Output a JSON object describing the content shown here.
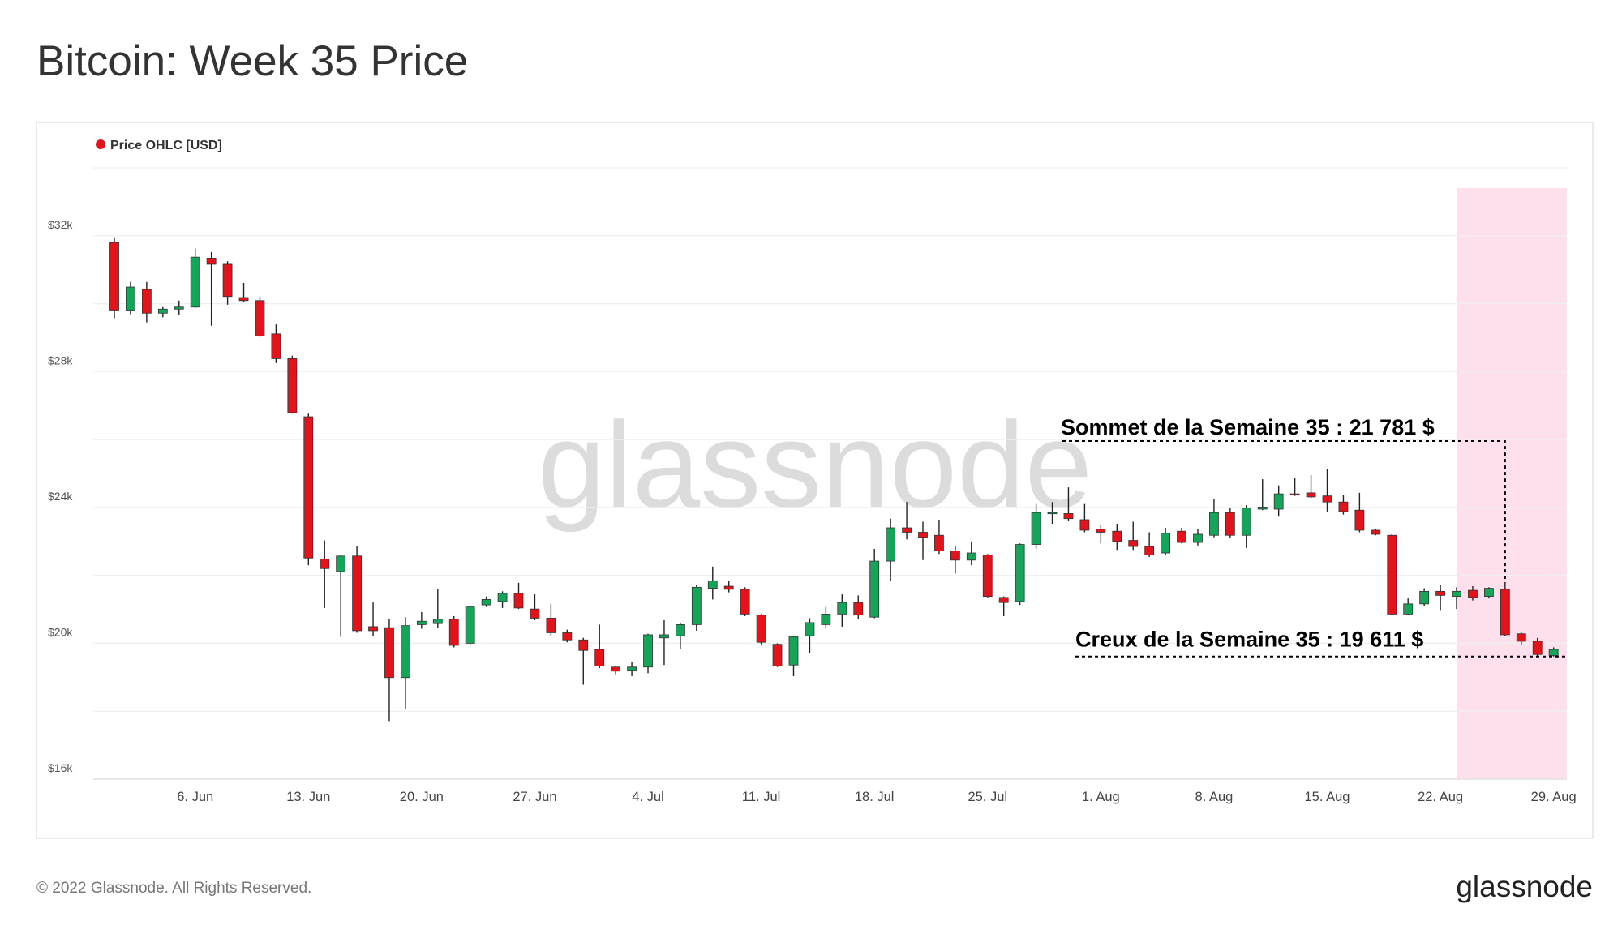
{
  "chart_data": {
    "type": "candlestick",
    "title": "Bitcoin: Week 35 Price",
    "legend": "Price OHLC [USD]",
    "watermark": "glassnode",
    "footer": "© 2022 Glassnode. All Rights Reserved.",
    "logo": "glassnode",
    "up_color": "#16a35a",
    "down_color": "#e3131b",
    "highlight_color": "#fde0ec",
    "highlight": {
      "from": 83,
      "to": 89
    },
    "categories": [
      null,
      null,
      null,
      null,
      null,
      "6. Jun",
      null,
      null,
      null,
      null,
      null,
      null,
      "13. Jun",
      null,
      null,
      null,
      null,
      null,
      null,
      "20. Jun",
      null,
      null,
      null,
      null,
      null,
      null,
      "27. Jun",
      null,
      null,
      null,
      null,
      null,
      null,
      "4. Jul",
      null,
      null,
      null,
      null,
      null,
      null,
      "11. Jul",
      null,
      null,
      null,
      null,
      null,
      null,
      "18. Jul",
      null,
      null,
      null,
      null,
      null,
      null,
      "25. Jul",
      null,
      null,
      null,
      null,
      null,
      null,
      "1. Aug",
      null,
      null,
      null,
      null,
      null,
      null,
      "8. Aug",
      null,
      null,
      null,
      null,
      null,
      null,
      "15. Aug",
      null,
      null,
      null,
      null,
      null,
      null,
      "22. Aug",
      null,
      null,
      null,
      null,
      null,
      null,
      "29. Aug"
    ],
    "open": [
      31800,
      29810,
      30420,
      29720,
      29840,
      29900,
      31340,
      31160,
      30180,
      30090,
      29110,
      28380,
      26670,
      22480,
      22110,
      22570,
      20490,
      20460,
      18990,
      20550,
      20580,
      20710,
      20000,
      21130,
      21230,
      21470,
      21010,
      20740,
      20310,
      20100,
      19820,
      19300,
      19210,
      19300,
      20160,
      20220,
      20550,
      21620,
      21680,
      21590,
      20830,
      19970,
      19360,
      20220,
      20550,
      20860,
      21200,
      20770,
      22420,
      23400,
      23270,
      23180,
      22720,
      22450,
      22600,
      21350,
      21230,
      22910,
      23820,
      23820,
      23640,
      23360,
      23300,
      23030,
      22850,
      22660,
      23300,
      22970,
      23180,
      23850,
      23180,
      23950,
      23950,
      24400,
      24430,
      24340,
      24160,
      23920,
      23330,
      23180,
      20860,
      21160,
      21530,
      21380,
      21560,
      21380,
      21590,
      20280,
      20060,
      19640
    ],
    "high": [
      31950,
      30640,
      30640,
      29900,
      30090,
      31620,
      31520,
      31250,
      30610,
      30210,
      29390,
      28470,
      26760,
      23030,
      22600,
      22850,
      21200,
      20710,
      20770,
      20920,
      21590,
      20800,
      21100,
      21380,
      21530,
      21780,
      21440,
      21160,
      20400,
      20160,
      20550,
      19330,
      19450,
      20280,
      20680,
      20610,
      21710,
      22260,
      21840,
      21650,
      20860,
      20000,
      20220,
      20740,
      21070,
      21440,
      21410,
      22780,
      23670,
      24160,
      23580,
      23640,
      22850,
      23000,
      22630,
      21380,
      22940,
      24100,
      24160,
      24590,
      24100,
      23490,
      23520,
      23580,
      23270,
      23400,
      23400,
      23360,
      24250,
      23980,
      24070,
      24830,
      24650,
      24860,
      24950,
      25140,
      24370,
      24430,
      23360,
      23210,
      21320,
      21620,
      21710,
      21650,
      21680,
      21650,
      21780,
      20340,
      20160,
      19880
    ],
    "low": [
      29570,
      29690,
      29450,
      29600,
      29660,
      29870,
      29350,
      29970,
      30060,
      29020,
      28250,
      26760,
      22300,
      21040,
      20190,
      20310,
      20220,
      17710,
      18080,
      20430,
      20460,
      19880,
      19970,
      21070,
      21040,
      21010,
      20680,
      20220,
      20030,
      18780,
      19270,
      19090,
      19030,
      19120,
      19360,
      19820,
      20370,
      21290,
      21500,
      20800,
      19970,
      19300,
      19030,
      19700,
      20430,
      20490,
      20710,
      20740,
      21840,
      23060,
      22450,
      22630,
      22050,
      22300,
      21350,
      20800,
      21130,
      22780,
      23520,
      23610,
      23270,
      22940,
      22750,
      22750,
      22540,
      22600,
      22940,
      22880,
      23120,
      23090,
      22810,
      23920,
      23730,
      24340,
      24280,
      23880,
      23790,
      23270,
      23180,
      20830,
      20830,
      21100,
      20980,
      21010,
      21260,
      21320,
      20220,
      19940,
      19610,
      19610
    ],
    "close": [
      29810,
      30490,
      29720,
      29840,
      29900,
      31370,
      31160,
      30210,
      30090,
      29050,
      28380,
      26790,
      22510,
      22200,
      22570,
      20370,
      20370,
      18990,
      20520,
      20650,
      20710,
      19940,
      21070,
      21290,
      21470,
      21040,
      20740,
      20310,
      20100,
      19790,
      19330,
      19180,
      19300,
      20250,
      20250,
      20550,
      21650,
      21840,
      21590,
      20860,
      20030,
      19330,
      20190,
      20610,
      20860,
      21200,
      20830,
      22420,
      23400,
      23270,
      23120,
      22720,
      22450,
      22660,
      21380,
      21200,
      22910,
      23850,
      23850,
      23670,
      23330,
      23270,
      23000,
      22850,
      22600,
      23240,
      22970,
      23210,
      23850,
      23180,
      23980,
      24010,
      24400,
      24370,
      24310,
      24160,
      23880,
      23330,
      23210,
      20860,
      21160,
      21530,
      21410,
      21530,
      21350,
      21620,
      20250,
      20060,
      19670,
      19820
    ],
    "ylim": [
      16000,
      34000
    ],
    "yticks": [
      {
        "value": 16000,
        "label": "$16k"
      },
      {
        "value": 20000,
        "label": "$20k"
      },
      {
        "value": 24000,
        "label": "$24k"
      },
      {
        "value": 28000,
        "label": "$28k"
      },
      {
        "value": 32000,
        "label": "$32k"
      }
    ],
    "minor_yticks": [
      18000,
      22000,
      26000,
      30000,
      34000
    ],
    "grid": true,
    "annotations": [
      {
        "text": "Sommet de la Semaine 35 : 21 781 $",
        "value": 21781,
        "kind": "high"
      },
      {
        "text": "Creux de la Semaine 35 : 19 611 $",
        "value": 19611,
        "kind": "low"
      }
    ]
  }
}
